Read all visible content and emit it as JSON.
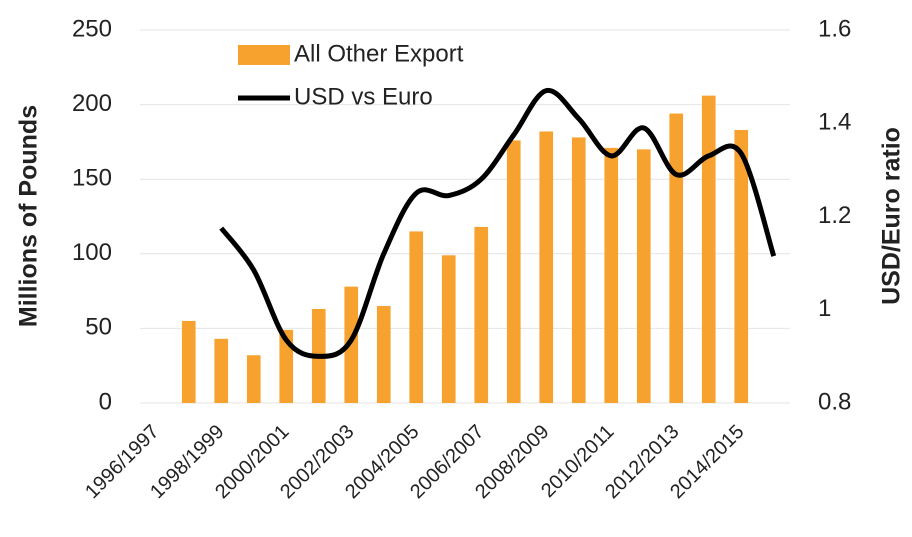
{
  "chart_data": {
    "type": "bar-line",
    "categories": [
      "1996/1997",
      null,
      "1998/1999",
      null,
      "2000/2001",
      null,
      "2002/2003",
      null,
      "2004/2005",
      null,
      "2006/2007",
      null,
      "2008/2009",
      null,
      "2010/2011",
      null,
      "2012/2013",
      null,
      "2014/2015",
      null
    ],
    "series": [
      {
        "name": "All Other Export",
        "type": "bar",
        "color": "#f7a12f",
        "values": [
          null,
          55,
          43,
          32,
          49,
          63,
          78,
          65,
          115,
          99,
          118,
          176,
          182,
          178,
          171,
          170,
          194,
          206,
          183,
          null
        ]
      },
      {
        "name": "USD vs Euro",
        "type": "line",
        "axis": "y2",
        "color": "#000000",
        "values": [
          null,
          null,
          1.175,
          1.085,
          0.935,
          0.9,
          0.935,
          1.12,
          1.25,
          1.245,
          1.28,
          1.375,
          1.47,
          1.41,
          1.33,
          1.39,
          1.29,
          1.33,
          1.335,
          1.115
        ]
      }
    ],
    "ylabel": "Millions of Pounds",
    "y2label": "USD/Euro ratio",
    "ylim": [
      0,
      250
    ],
    "yticks": [
      0,
      50,
      100,
      150,
      200,
      250
    ],
    "y2lim": [
      0.8,
      1.6
    ],
    "y2ticks": [
      0.8,
      1,
      1.2,
      1.4,
      1.6
    ],
    "grid": true,
    "legend": "top-left"
  }
}
